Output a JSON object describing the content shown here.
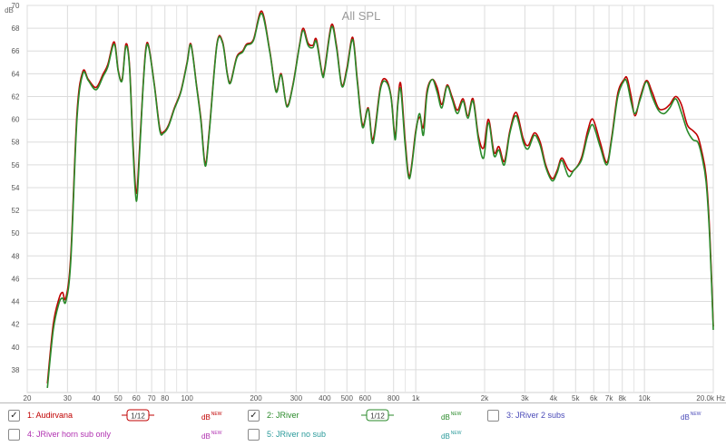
{
  "chart_data": {
    "type": "line",
    "title": "All SPL",
    "ylabel": "dB",
    "xunit": "Hz",
    "x_scale": "log",
    "xlim": [
      20,
      20000
    ],
    "ylim": [
      36,
      70
    ],
    "grid": true,
    "y_ticks": [
      "38",
      "40",
      "42",
      "44",
      "46",
      "48",
      "50",
      "52",
      "54",
      "56",
      "58",
      "60",
      "62",
      "64",
      "66",
      "68",
      "70"
    ],
    "x_ticks": [
      {
        "v": 20,
        "l": "20"
      },
      {
        "v": 30,
        "l": "30"
      },
      {
        "v": 40,
        "l": "40"
      },
      {
        "v": 50,
        "l": "50"
      },
      {
        "v": 60,
        "l": "60"
      },
      {
        "v": 70,
        "l": "70"
      },
      {
        "v": 80,
        "l": "80"
      },
      {
        "v": 100,
        "l": "100"
      },
      {
        "v": 200,
        "l": "200"
      },
      {
        "v": 300,
        "l": "300"
      },
      {
        "v": 400,
        "l": "400"
      },
      {
        "v": 500,
        "l": "500"
      },
      {
        "v": 600,
        "l": "600"
      },
      {
        "v": 800,
        "l": "800"
      },
      {
        "v": 1000,
        "l": "1k"
      },
      {
        "v": 2000,
        "l": "2k"
      },
      {
        "v": 3000,
        "l": "3k"
      },
      {
        "v": 4000,
        "l": "4k"
      },
      {
        "v": 5000,
        "l": "5k"
      },
      {
        "v": 6000,
        "l": "6k"
      },
      {
        "v": 7000,
        "l": "7k"
      },
      {
        "v": 8000,
        "l": "8k"
      },
      {
        "v": 10000,
        "l": "10k"
      },
      {
        "v": 20000,
        "l": "20.0k Hz"
      }
    ],
    "minor_x": [
      90,
      900,
      9000
    ],
    "series": [
      {
        "name": "1: Audirvana",
        "color": "#c00000",
        "points": [
          [
            24.5,
            36.8
          ],
          [
            26,
            42.0
          ],
          [
            27.5,
            44.2
          ],
          [
            28.5,
            44.8
          ],
          [
            29.5,
            44.3
          ],
          [
            31,
            48.0
          ],
          [
            33,
            60.5
          ],
          [
            35,
            64.2
          ],
          [
            37,
            63.5
          ],
          [
            40,
            62.8
          ],
          [
            43,
            64.0
          ],
          [
            45,
            64.8
          ],
          [
            48,
            66.8
          ],
          [
            50,
            64.3
          ],
          [
            52,
            63.5
          ],
          [
            54,
            66.6
          ],
          [
            56,
            64.8
          ],
          [
            58,
            58.0
          ],
          [
            60,
            53.5
          ],
          [
            62,
            57.5
          ],
          [
            64,
            62.5
          ],
          [
            66,
            66.2
          ],
          [
            68,
            66.4
          ],
          [
            72,
            63.0
          ],
          [
            76,
            59.2
          ],
          [
            79,
            58.9
          ],
          [
            83,
            59.5
          ],
          [
            88,
            61.0
          ],
          [
            94,
            62.5
          ],
          [
            100,
            65.0
          ],
          [
            104,
            66.6
          ],
          [
            110,
            63.0
          ],
          [
            115,
            60.0
          ],
          [
            120,
            56.1
          ],
          [
            125,
            59.0
          ],
          [
            135,
            66.6
          ],
          [
            143,
            66.8
          ],
          [
            150,
            64.0
          ],
          [
            155,
            63.3
          ],
          [
            165,
            65.5
          ],
          [
            175,
            66.0
          ],
          [
            182,
            66.6
          ],
          [
            195,
            67.0
          ],
          [
            212,
            69.5
          ],
          [
            230,
            66.0
          ],
          [
            245,
            62.5
          ],
          [
            258,
            64.0
          ],
          [
            273,
            61.2
          ],
          [
            290,
            63.0
          ],
          [
            310,
            66.5
          ],
          [
            322,
            68.0
          ],
          [
            338,
            66.7
          ],
          [
            355,
            66.5
          ],
          [
            368,
            67.0
          ],
          [
            390,
            64.0
          ],
          [
            400,
            64.5
          ],
          [
            428,
            68.3
          ],
          [
            450,
            66.5
          ],
          [
            475,
            63.0
          ],
          [
            500,
            64.5
          ],
          [
            530,
            67.2
          ],
          [
            555,
            63.5
          ],
          [
            585,
            59.5
          ],
          [
            620,
            61.0
          ],
          [
            650,
            58.2
          ],
          [
            700,
            62.8
          ],
          [
            740,
            63.5
          ],
          [
            780,
            62.0
          ],
          [
            812,
            58.5
          ],
          [
            835,
            61.5
          ],
          [
            860,
            63.1
          ],
          [
            900,
            58.0
          ],
          [
            940,
            55.0
          ],
          [
            1000,
            59.0
          ],
          [
            1040,
            60.2
          ],
          [
            1080,
            59.3
          ],
          [
            1120,
            62.5
          ],
          [
            1180,
            63.5
          ],
          [
            1240,
            62.8
          ],
          [
            1300,
            61.3
          ],
          [
            1370,
            63.0
          ],
          [
            1440,
            62.0
          ],
          [
            1520,
            60.8
          ],
          [
            1610,
            61.8
          ],
          [
            1690,
            60.3
          ],
          [
            1780,
            61.8
          ],
          [
            1880,
            58.5
          ],
          [
            1980,
            57.5
          ],
          [
            2080,
            60.0
          ],
          [
            2200,
            57.1
          ],
          [
            2310,
            57.6
          ],
          [
            2440,
            56.3
          ],
          [
            2580,
            59.0
          ],
          [
            2750,
            60.6
          ],
          [
            2950,
            58.3
          ],
          [
            3100,
            57.7
          ],
          [
            3300,
            58.8
          ],
          [
            3500,
            58.0
          ],
          [
            3700,
            56.0
          ],
          [
            3950,
            54.8
          ],
          [
            4150,
            55.5
          ],
          [
            4350,
            56.6
          ],
          [
            4650,
            55.6
          ],
          [
            4900,
            55.5
          ],
          [
            5300,
            56.6
          ],
          [
            5650,
            59.0
          ],
          [
            5950,
            60.0
          ],
          [
            6400,
            58.0
          ],
          [
            6850,
            56.2
          ],
          [
            7200,
            58.5
          ],
          [
            7650,
            62.3
          ],
          [
            8150,
            63.5
          ],
          [
            8400,
            63.6
          ],
          [
            8750,
            62.0
          ],
          [
            9100,
            60.3
          ],
          [
            9600,
            62.0
          ],
          [
            10200,
            63.4
          ],
          [
            10800,
            62.4
          ],
          [
            11500,
            61.0
          ],
          [
            12200,
            60.9
          ],
          [
            12900,
            61.3
          ],
          [
            13700,
            62.0
          ],
          [
            14500,
            61.3
          ],
          [
            15400,
            59.5
          ],
          [
            16300,
            59.0
          ],
          [
            17100,
            58.5
          ],
          [
            17800,
            57.2
          ],
          [
            18600,
            55.0
          ],
          [
            19300,
            50.0
          ],
          [
            20000,
            41.8
          ]
        ]
      },
      {
        "name": "2: JRiver",
        "color": "#2a8a2a",
        "points": [
          [
            24.5,
            36.4
          ],
          [
            26,
            41.5
          ],
          [
            27.5,
            43.8
          ],
          [
            28.5,
            44.3
          ],
          [
            29.5,
            44.0
          ],
          [
            31,
            47.5
          ],
          [
            33,
            60.0
          ],
          [
            35,
            64.0
          ],
          [
            37,
            63.4
          ],
          [
            40,
            62.6
          ],
          [
            43,
            63.8
          ],
          [
            45,
            64.6
          ],
          [
            48,
            66.6
          ],
          [
            50,
            64.2
          ],
          [
            52,
            63.4
          ],
          [
            54,
            66.4
          ],
          [
            56,
            64.6
          ],
          [
            58,
            57.5
          ],
          [
            60,
            52.8
          ],
          [
            62,
            57.0
          ],
          [
            64,
            62.3
          ],
          [
            66,
            66.0
          ],
          [
            68,
            66.3
          ],
          [
            72,
            62.9
          ],
          [
            76,
            59.0
          ],
          [
            79,
            58.8
          ],
          [
            83,
            59.4
          ],
          [
            88,
            60.9
          ],
          [
            94,
            62.4
          ],
          [
            100,
            64.9
          ],
          [
            104,
            66.5
          ],
          [
            110,
            62.9
          ],
          [
            115,
            59.8
          ],
          [
            120,
            55.9
          ],
          [
            125,
            58.8
          ],
          [
            135,
            66.5
          ],
          [
            143,
            66.7
          ],
          [
            150,
            63.9
          ],
          [
            155,
            63.2
          ],
          [
            165,
            65.4
          ],
          [
            175,
            65.9
          ],
          [
            182,
            66.5
          ],
          [
            195,
            66.9
          ],
          [
            212,
            69.3
          ],
          [
            230,
            65.9
          ],
          [
            245,
            62.4
          ],
          [
            258,
            63.9
          ],
          [
            273,
            61.1
          ],
          [
            290,
            62.9
          ],
          [
            310,
            66.4
          ],
          [
            322,
            67.8
          ],
          [
            338,
            66.5
          ],
          [
            355,
            66.3
          ],
          [
            368,
            66.8
          ],
          [
            390,
            63.9
          ],
          [
            400,
            64.3
          ],
          [
            428,
            68.1
          ],
          [
            450,
            66.3
          ],
          [
            475,
            62.9
          ],
          [
            500,
            64.3
          ],
          [
            530,
            67.0
          ],
          [
            555,
            63.3
          ],
          [
            585,
            59.3
          ],
          [
            620,
            60.9
          ],
          [
            650,
            57.9
          ],
          [
            700,
            62.6
          ],
          [
            740,
            63.3
          ],
          [
            780,
            61.9
          ],
          [
            812,
            58.2
          ],
          [
            835,
            61.3
          ],
          [
            860,
            62.6
          ],
          [
            900,
            57.6
          ],
          [
            940,
            54.8
          ],
          [
            1000,
            58.8
          ],
          [
            1040,
            60.5
          ],
          [
            1080,
            58.6
          ],
          [
            1120,
            62.2
          ],
          [
            1180,
            63.5
          ],
          [
            1240,
            62.4
          ],
          [
            1300,
            61.0
          ],
          [
            1370,
            62.9
          ],
          [
            1440,
            61.8
          ],
          [
            1520,
            60.5
          ],
          [
            1610,
            61.6
          ],
          [
            1690,
            60.1
          ],
          [
            1780,
            61.6
          ],
          [
            1880,
            58.2
          ],
          [
            1980,
            56.6
          ],
          [
            2080,
            59.7
          ],
          [
            2200,
            56.8
          ],
          [
            2310,
            57.3
          ],
          [
            2440,
            56.0
          ],
          [
            2580,
            58.8
          ],
          [
            2750,
            60.3
          ],
          [
            2950,
            58.0
          ],
          [
            3100,
            57.4
          ],
          [
            3300,
            58.6
          ],
          [
            3500,
            57.7
          ],
          [
            3700,
            55.8
          ],
          [
            3950,
            54.6
          ],
          [
            4150,
            55.3
          ],
          [
            4350,
            56.4
          ],
          [
            4650,
            55.0
          ],
          [
            4900,
            55.5
          ],
          [
            5300,
            56.4
          ],
          [
            5650,
            58.6
          ],
          [
            5950,
            59.5
          ],
          [
            6400,
            57.6
          ],
          [
            6850,
            56.0
          ],
          [
            7200,
            58.3
          ],
          [
            7650,
            62.0
          ],
          [
            8150,
            63.4
          ],
          [
            8400,
            63.2
          ],
          [
            8750,
            61.5
          ],
          [
            9100,
            60.5
          ],
          [
            9600,
            61.8
          ],
          [
            10200,
            63.3
          ],
          [
            10800,
            62.0
          ],
          [
            11500,
            60.8
          ],
          [
            12200,
            60.5
          ],
          [
            12900,
            61.0
          ],
          [
            13700,
            61.8
          ],
          [
            14500,
            60.6
          ],
          [
            15400,
            59.0
          ],
          [
            16300,
            58.2
          ],
          [
            17100,
            58.0
          ],
          [
            17800,
            56.8
          ],
          [
            18600,
            54.5
          ],
          [
            19300,
            49.5
          ],
          [
            20000,
            41.5
          ]
        ]
      }
    ]
  },
  "legend": {
    "items": [
      {
        "label": "1: Audirvana",
        "checked": true,
        "color": "#c00000",
        "smoothing": "1/12",
        "db": "dB",
        "new": "NEW"
      },
      {
        "label": "2: JRiver",
        "checked": true,
        "color": "#2a8a2a",
        "smoothing": "1/12",
        "db": "dB",
        "new": "NEW"
      },
      {
        "label": "3: JRiver 2 subs",
        "checked": false,
        "color": "#4a4ab8",
        "db": "dB",
        "new": "NEW"
      },
      {
        "label": "4: JRiver horn sub only",
        "checked": false,
        "color": "#b030b0",
        "db": "dB",
        "new": "NEW"
      },
      {
        "label": "5: JRiver no sub",
        "checked": false,
        "color": "#2a9a9a",
        "db": "dB",
        "new": "NEW"
      }
    ]
  },
  "icons": {
    "checkbox": "checkbox-icon",
    "smoothing": "smoothing-badge-icon"
  }
}
